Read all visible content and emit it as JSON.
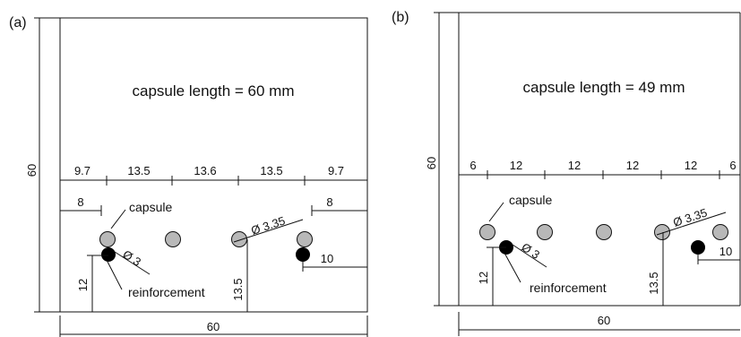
{
  "panel_a": {
    "label": "(a)",
    "title": "capsule length = 60 mm",
    "height_label": "60",
    "width_label": "60",
    "spacing_labels": [
      "9.7",
      "13.5",
      "13.6",
      "13.5",
      "9.7"
    ],
    "left_offset": "8",
    "right_offset": "8",
    "capsule_label": "capsule",
    "diameter_capsule": "Ø 3.35",
    "diameter_reinforcement": "Ø 3",
    "reinforcement_label": "reinforcement",
    "rein_height_left": "12",
    "capsule_height": "13.5",
    "rein_right_offset": "10"
  },
  "panel_b": {
    "label": "(b)",
    "title": "capsule length = 49 mm",
    "height_label": "60",
    "width_label": "60",
    "spacing_labels": [
      "6",
      "12",
      "12",
      "12",
      "12",
      "6"
    ],
    "capsule_label": "capsule",
    "diameter_capsule": "Ø 3.35",
    "diameter_reinforcement": "Ø 3",
    "reinforcement_label": "reinforcement",
    "rein_height_left": "12",
    "capsule_height": "13.5",
    "rein_right_offset": "10"
  },
  "colors": {
    "capsule_fill": "#b8b8b8",
    "reinforcement_fill": "#000000",
    "line": "#111111"
  }
}
